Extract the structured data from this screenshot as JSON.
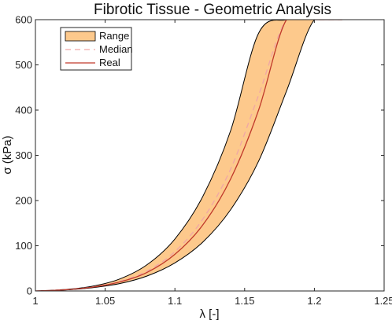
{
  "chart_data": {
    "type": "area",
    "title": "Fibrotic Tissue - Geometric Analysis",
    "xlabel": "λ [-]",
    "ylabel": "σ (kPa)",
    "xlim": [
      1,
      1.25
    ],
    "ylim": [
      0,
      600
    ],
    "xticks": [
      "1",
      "1.05",
      "1.1",
      "1.15",
      "1.2",
      "1.25"
    ],
    "yticks": [
      "0",
      "100",
      "200",
      "300",
      "400",
      "500",
      "600"
    ],
    "grid": false,
    "legend_position": "top-left",
    "x": [
      1.0,
      1.02,
      1.04,
      1.06,
      1.08,
      1.1,
      1.12,
      1.14,
      1.16,
      1.18,
      1.2,
      1.22
    ],
    "series": [
      {
        "name": "Range",
        "kind": "band",
        "color": "#fdc98c",
        "edge_color": "#000000",
        "lower": [
          0,
          2,
          7,
          16,
          33,
          62,
          108,
          180,
          287,
          442,
          600,
          600
        ],
        "upper": [
          0,
          3,
          10,
          26,
          58,
          115,
          209,
          355,
          570,
          600,
          600,
          600
        ]
      },
      {
        "name": "Median",
        "kind": "line",
        "color": "#f0a6a6",
        "dash": "dashed",
        "values": [
          0,
          2.5,
          8.4,
          20.7,
          44,
          87,
          159,
          270,
          433,
          600,
          600,
          600
        ]
      },
      {
        "name": "Real",
        "kind": "line",
        "color": "#c0392b",
        "dash": "solid",
        "values": [
          0,
          2.4,
          8,
          19.6,
          41,
          81,
          146,
          248,
          400,
          600,
          600,
          600
        ]
      }
    ]
  }
}
